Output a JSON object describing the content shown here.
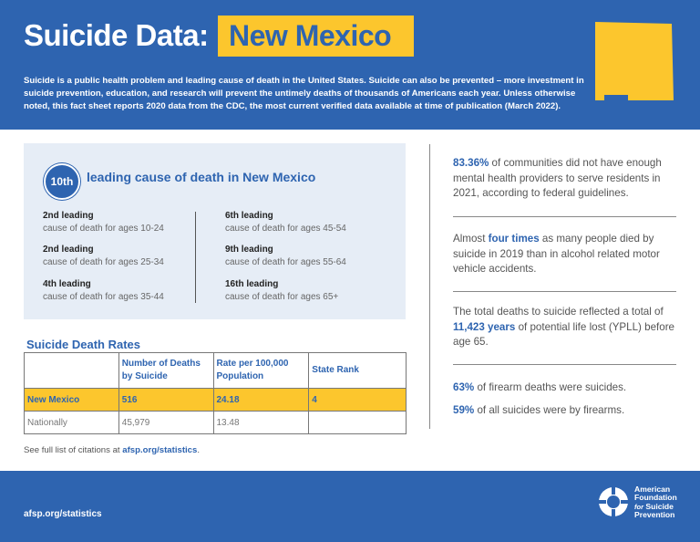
{
  "header": {
    "title_prefix": "Suicide Data:",
    "title_state": "New Mexico",
    "intro": "Suicide is a public health problem and leading cause of death in the United States. Suicide can also be prevented – more investment in suicide prevention, education, and research will prevent the untimely deaths of thousands of Americans each year. Unless otherwise noted, this fact sheet reports 2020 data from the CDC, the most current verified data available at time of publication (March 2022).",
    "colors": {
      "brand_blue": "#2e64b0",
      "accent_yellow": "#fcc62d"
    }
  },
  "cause_panel": {
    "rank_badge": "10th",
    "heading": "leading cause of death in New Mexico",
    "left": [
      {
        "title": "2nd leading",
        "subtitle": "cause of death for ages 10-24"
      },
      {
        "title": "2nd leading",
        "subtitle": "cause of death for ages 25-34"
      },
      {
        "title": "4th leading",
        "subtitle": "cause of death for ages 35-44"
      }
    ],
    "right": [
      {
        "title": "6th leading",
        "subtitle": "cause of death for ages 45-54"
      },
      {
        "title": "9th leading",
        "subtitle": "cause of death for ages 55-64"
      },
      {
        "title": "16th leading",
        "subtitle": "cause of death for ages 65+"
      }
    ]
  },
  "rates": {
    "title": "Suicide Death Rates",
    "headers": [
      "",
      "Number of Deaths by Suicide",
      "Rate per 100,000 Population",
      "State Rank"
    ],
    "rows": [
      [
        "New Mexico",
        "516",
        "24.18",
        "4"
      ],
      [
        "Nationally",
        "45,979",
        "13.48",
        ""
      ]
    ]
  },
  "citation": {
    "prefix": "See full list of citations at ",
    "link": "afsp.org/statistics",
    "suffix": "."
  },
  "stats": {
    "s1": {
      "emph": "83.36%",
      "rest": " of communities did not have enough mental health providers to serve residents in 2021, according to federal guidelines."
    },
    "s2": {
      "pre": "Almost ",
      "emph": "four times",
      "rest": " as many people died by suicide in 2019 than in alcohol related motor vehicle accidents."
    },
    "s3": {
      "pre": "The total deaths to suicide reflected a total of ",
      "emph": "11,423 years",
      "rest": " of potential life lost (YPLL) before age 65."
    },
    "s4": {
      "emph": "63%",
      "rest": " of firearm deaths were suicides."
    },
    "s5": {
      "emph": "59%",
      "rest": " of all suicides were by firearms."
    }
  },
  "footer": {
    "url": "afsp.org/statistics",
    "logo_line1": "American",
    "logo_line2": "Foundation",
    "logo_line3": "for",
    "logo_line4": "Suicide",
    "logo_line5": "Prevention"
  }
}
